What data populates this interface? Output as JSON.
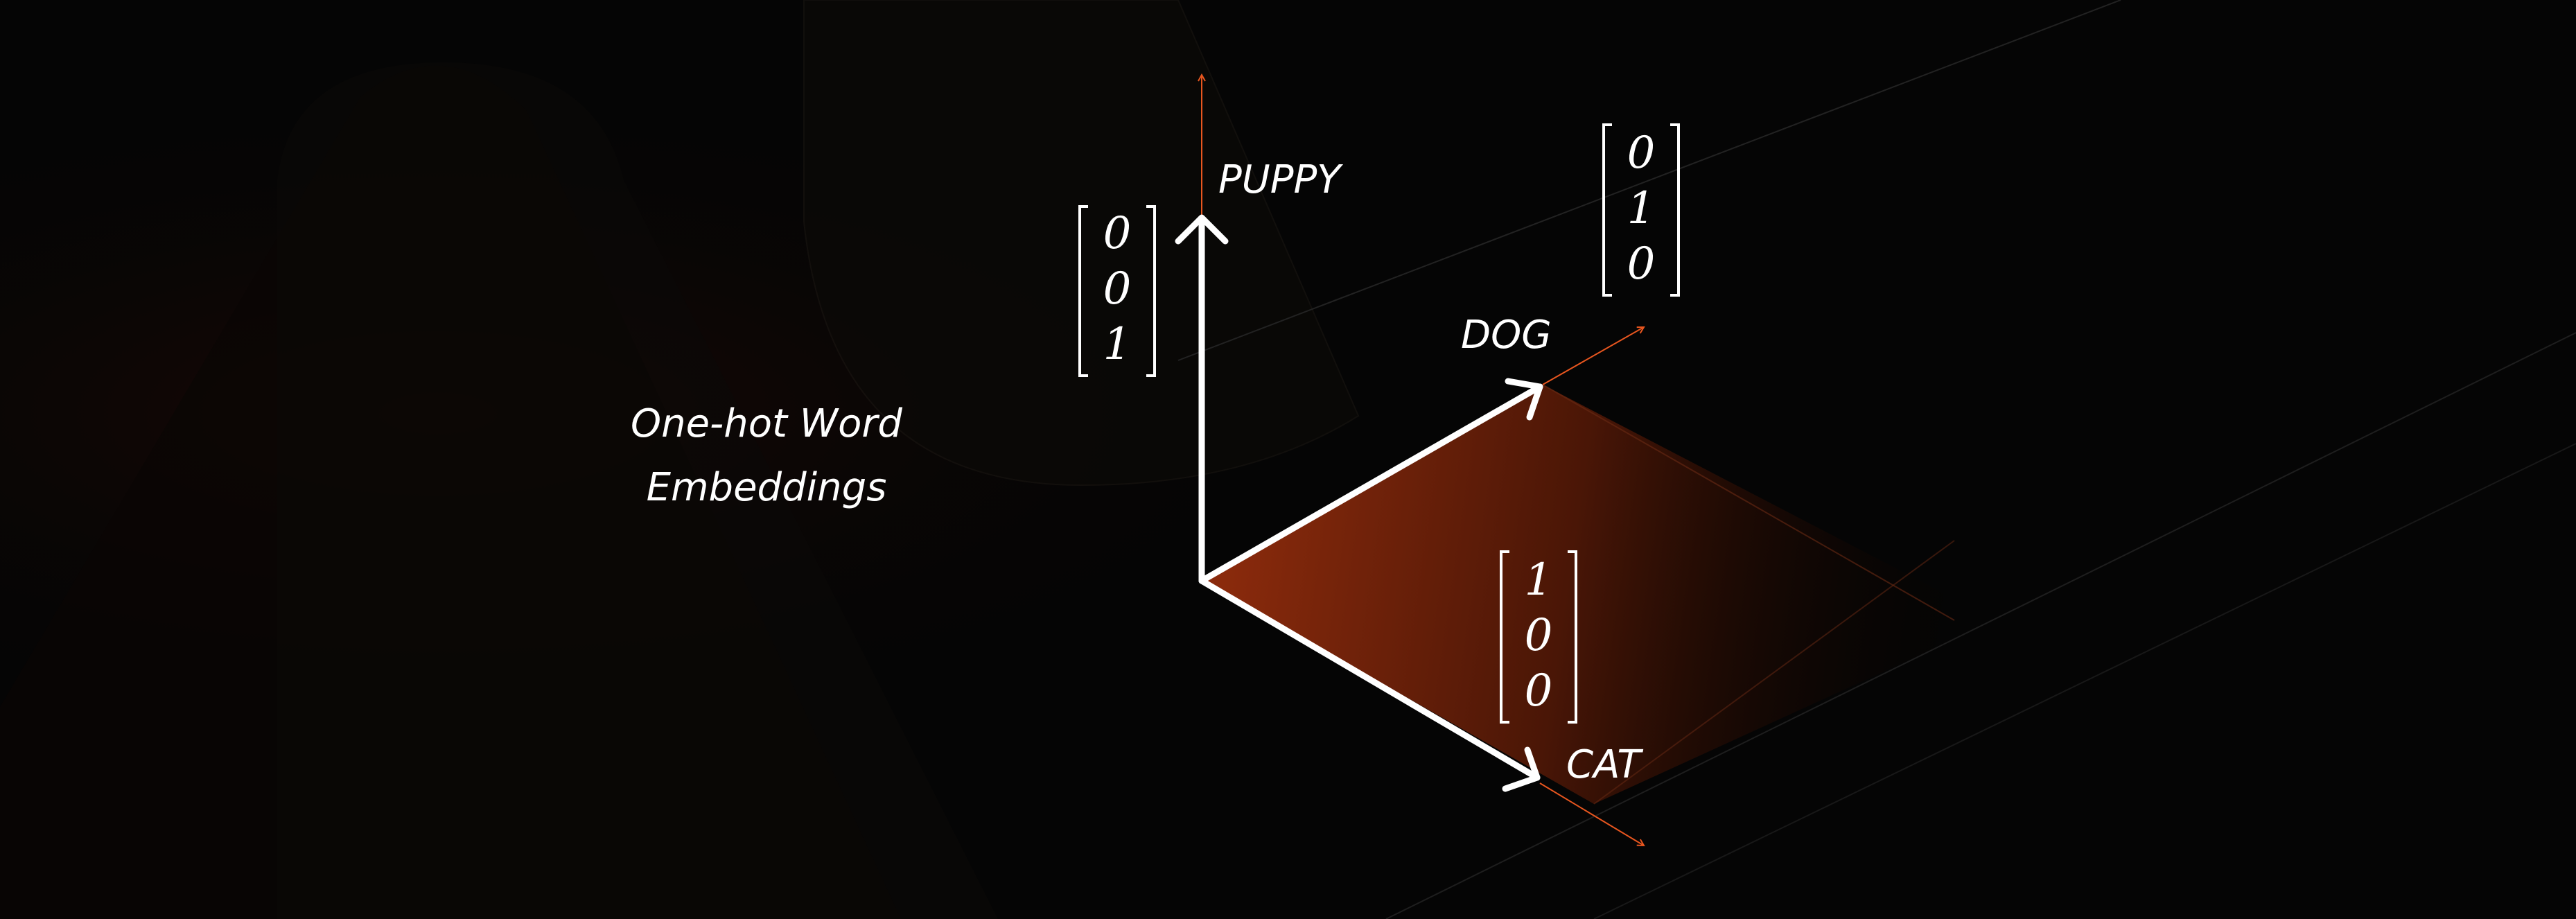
{
  "title": {
    "line1": "One-hot Word",
    "line2": "Embeddings"
  },
  "axes": {
    "puppy": {
      "label": "PUPPY",
      "vector": [
        "0",
        "0",
        "1"
      ]
    },
    "dog": {
      "label": "DOG",
      "vector": [
        "0",
        "1",
        "0"
      ]
    },
    "cat": {
      "label": "CAT",
      "vector": [
        "1",
        "0",
        "0"
      ]
    }
  },
  "colors": {
    "background": "#050505",
    "accent": "#e8561f",
    "plane_start": "#8a2a0c",
    "plane_end": "#000000",
    "foreground": "#ffffff"
  }
}
